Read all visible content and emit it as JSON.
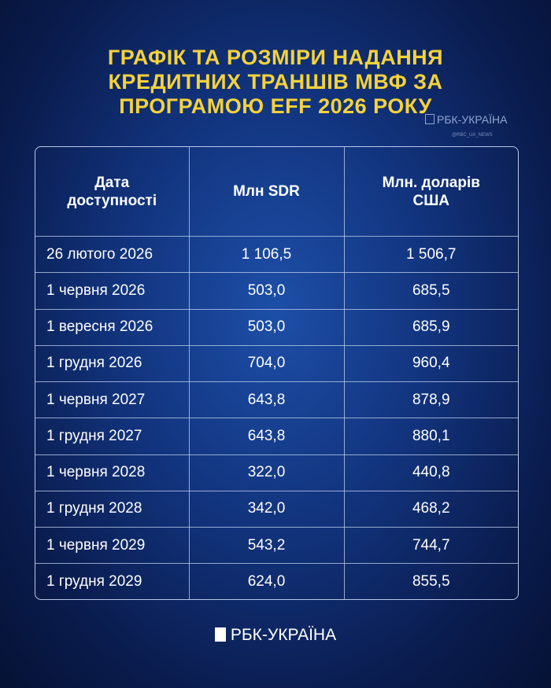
{
  "header": {
    "title": [
      "ГРАФІК ТА РОЗМІРИ НАДАННЯ",
      "КРЕДИТНИХ ТРАНШІВ МВФ ЗА",
      "ПРОГРАМОЮ EFF 2026 РОКУ"
    ],
    "watermark": "РБК-УКРАЇНА",
    "handle": "@RBC_UA_NEWS"
  },
  "table": {
    "columns": [
      "Дата доступності",
      "Млн SDR",
      "Млн. доларів США"
    ],
    "rows": [
      [
        "26 лютого 2026",
        "1 106,5",
        "1 506,7"
      ],
      [
        "1 червня 2026",
        "503,0",
        "685,5"
      ],
      [
        "1 вересня 2026",
        "503,0",
        "685,9"
      ],
      [
        "1 грудня 2026",
        "704,0",
        "960,4"
      ],
      [
        "1 червня 2027",
        "643,8",
        "878,9"
      ],
      [
        "1 грудня 2027",
        "643,8",
        "880,1"
      ],
      [
        "1 червня 2028",
        "322,0",
        "440,8"
      ],
      [
        "1 грудня 2028",
        "342,0",
        "468,2"
      ],
      [
        "1 червня 2029",
        "543,2",
        "744,7"
      ],
      [
        "1 грудня 2029",
        "624,0",
        "855,5"
      ]
    ]
  },
  "footer": {
    "logo": "РБК-УКРАЇНА"
  }
}
